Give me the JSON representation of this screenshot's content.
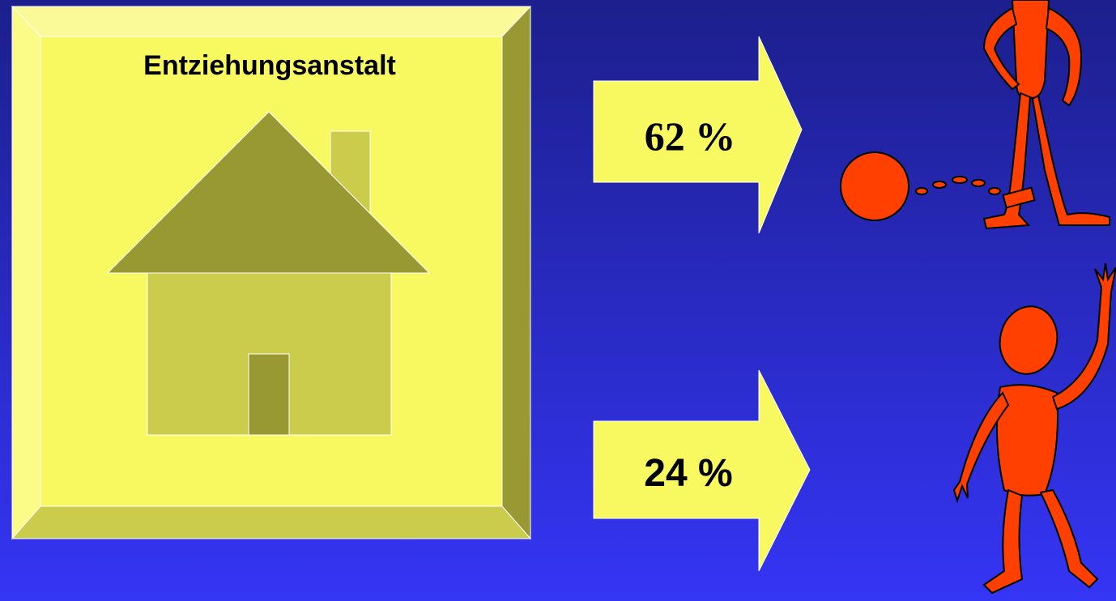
{
  "box": {
    "label": "Entziehungsanstalt"
  },
  "arrows": [
    {
      "label": "62 %"
    },
    {
      "label": "24 %"
    }
  ]
}
